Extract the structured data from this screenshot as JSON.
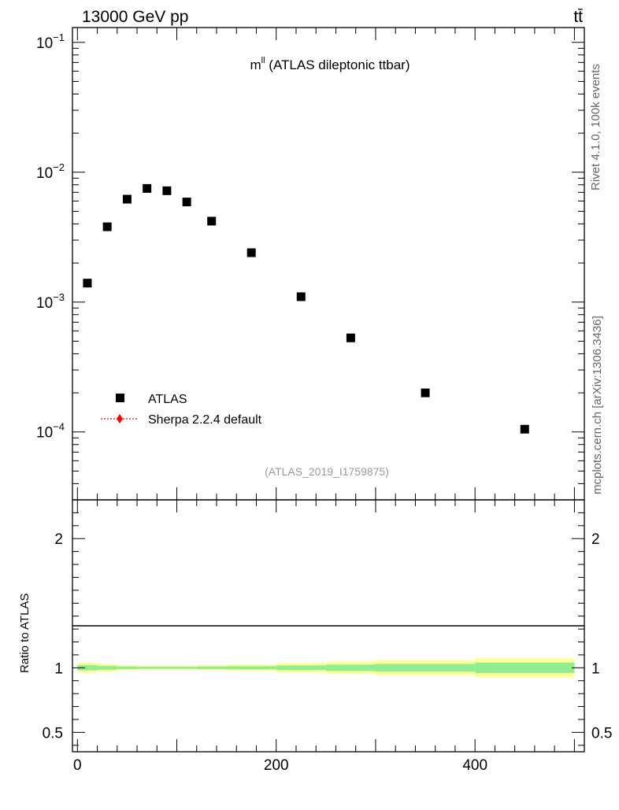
{
  "header": {
    "left": "13000 GeV pp",
    "right": "tt̄"
  },
  "side_text": {
    "rivet": "Rivet 4.1.0,  100k events",
    "source": "mcplots.cern.ch [arXiv:1306.3436]"
  },
  "chart_data": [
    {
      "type": "scatter",
      "panel": "main",
      "title_main": "m",
      "title_sup": "ll",
      "title_rest": " (ATLAS dileptonic ttbar)",
      "watermark": "(ATLAS_2019_I1759875)",
      "yscale": "log",
      "xlim": [
        -5,
        510
      ],
      "ylim": [
        3e-05,
        0.13
      ],
      "y_major_ticks": [
        {
          "value": 0.1,
          "base": "10",
          "exp": "−1"
        },
        {
          "value": 0.01,
          "base": "10",
          "exp": "−2"
        },
        {
          "value": 0.001,
          "base": "10",
          "exp": "−3"
        },
        {
          "value": 0.0001,
          "base": "10",
          "exp": "−4"
        }
      ],
      "legend": {
        "placement": "bottom-left",
        "entries": [
          "ATLAS",
          "Sherpa 2.2.4 default"
        ]
      },
      "series": [
        {
          "name": "ATLAS",
          "color": "#000000",
          "marker": "square",
          "x": [
            10,
            30,
            50,
            70,
            90,
            110,
            135,
            175,
            225,
            275,
            350,
            450
          ],
          "y": [
            0.0014,
            0.0038,
            0.0062,
            0.0075,
            0.0072,
            0.0059,
            0.0042,
            0.0024,
            0.0011,
            0.00053,
            0.0002,
            0.000105
          ]
        },
        {
          "name": "Sherpa 2.2.4 default",
          "color": "#ff0000",
          "marker": "diamond",
          "x": [],
          "y": []
        }
      ]
    },
    {
      "type": "area",
      "panel": "ratio",
      "ylabel": "Ratio to ATLAS",
      "xlim": [
        -5,
        510
      ],
      "ylim": [
        0.35,
        2.3
      ],
      "x_ticks": [
        0,
        200,
        400
      ],
      "y_ticks": [
        0.5,
        1,
        2
      ],
      "reference_line": 1,
      "bands": {
        "bin_edges": [
          0,
          20,
          40,
          60,
          80,
          100,
          120,
          150,
          200,
          250,
          300,
          400,
          500
        ],
        "inner_half_width": [
          0.02,
          0.015,
          0.01,
          0.008,
          0.008,
          0.008,
          0.01,
          0.012,
          0.018,
          0.025,
          0.03,
          0.04
        ],
        "outer_half_width": [
          0.04,
          0.03,
          0.02,
          0.015,
          0.015,
          0.015,
          0.02,
          0.025,
          0.038,
          0.048,
          0.058,
          0.075
        ],
        "inner_color": "#90ee90",
        "outer_color": "#ffff99"
      }
    }
  ]
}
